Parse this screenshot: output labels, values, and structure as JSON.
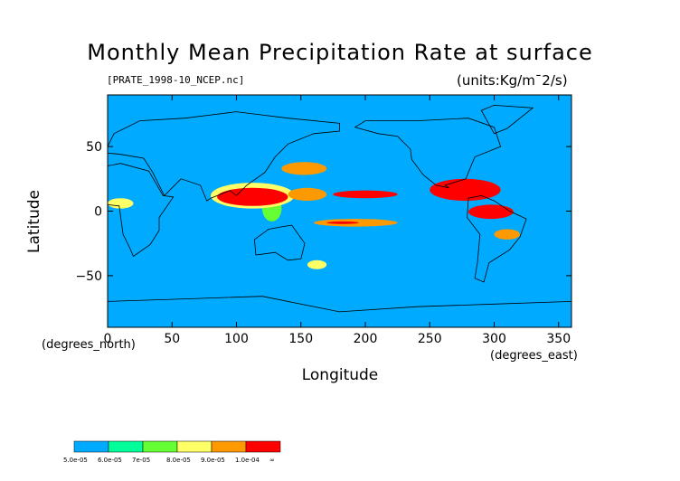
{
  "chart_data": {
    "type": "heatmap",
    "title": "Monthly Mean Precipitation Rate at surface",
    "subtitle": "[PRATE_1998-10_NCEP.nc]",
    "units": "(units:Kg/m¯2/s)",
    "xlabel": "Longitude",
    "ylabel": "Latitude",
    "x_unit": "(degrees_east)",
    "y_unit": "(degrees_north)",
    "xlim": [
      0,
      360
    ],
    "ylim": [
      -90,
      90
    ],
    "x_ticks": [
      0,
      50,
      100,
      150,
      200,
      250,
      300,
      350
    ],
    "x_tick_labels": [
      "0",
      "50",
      "100",
      "150",
      "200",
      "250",
      "300",
      "350"
    ],
    "y_ticks": [
      -50,
      0,
      50
    ],
    "y_tick_labels": [
      "−50",
      "0",
      "50"
    ],
    "background_color": "#00aaff",
    "colorbar": {
      "labels": [
        "5.0e-05",
        "6.0e-05",
        "7e-05",
        "8.0e-05",
        "9.0e-05",
        "1.0e-04",
        "∞"
      ],
      "colors": [
        "#00aaff",
        "#00ff99",
        "#66ff33",
        "#ffff66",
        "#ff9900",
        "#ff0000"
      ]
    },
    "regions": [
      {
        "level": 2,
        "lon": [
          120,
          135
        ],
        "lat": [
          -8,
          12
        ]
      },
      {
        "level": 3,
        "lon": [
          80,
          145
        ],
        "lat": [
          2,
          22
        ]
      },
      {
        "level": 5,
        "lon": [
          85,
          140
        ],
        "lat": [
          4,
          18
        ]
      },
      {
        "level": 4,
        "lon": [
          140,
          170
        ],
        "lat": [
          8,
          18
        ]
      },
      {
        "level": 5,
        "lon": [
          175,
          225
        ],
        "lat": [
          10,
          16
        ]
      },
      {
        "level": 4,
        "lon": [
          160,
          225
        ],
        "lat": [
          -12,
          -6
        ]
      },
      {
        "level": 5,
        "lon": [
          170,
          195
        ],
        "lat": [
          -10,
          -8
        ]
      },
      {
        "level": 5,
        "lon": [
          250,
          305
        ],
        "lat": [
          8,
          25
        ]
      },
      {
        "level": 5,
        "lon": [
          280,
          315
        ],
        "lat": [
          -6,
          5
        ]
      },
      {
        "level": 3,
        "lon": [
          0,
          20
        ],
        "lat": [
          2,
          10
        ]
      },
      {
        "level": 4,
        "lon": [
          135,
          170
        ],
        "lat": [
          28,
          38
        ]
      },
      {
        "level": 4,
        "lon": [
          300,
          320
        ],
        "lat": [
          -22,
          -14
        ]
      },
      {
        "level": 3,
        "lon": [
          155,
          170
        ],
        "lat": [
          -45,
          -38
        ]
      }
    ]
  }
}
